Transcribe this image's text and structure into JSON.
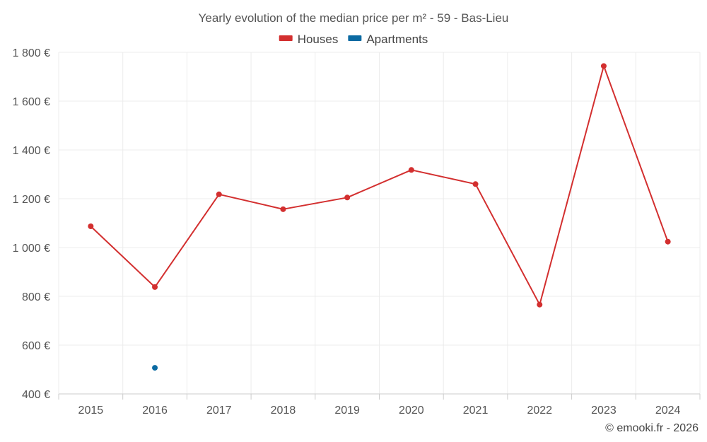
{
  "chart_data": {
    "type": "line",
    "title": "Yearly evolution of the median price per m² - 59 - Bas-Lieu",
    "categories": [
      "2015",
      "2016",
      "2017",
      "2018",
      "2019",
      "2020",
      "2021",
      "2022",
      "2023",
      "2024"
    ],
    "series": [
      {
        "name": "Houses",
        "color": "#d32f2f",
        "values": [
          1087,
          838,
          1218,
          1157,
          1205,
          1318,
          1260,
          766,
          1744,
          1024
        ]
      },
      {
        "name": "Apartments",
        "color": "#0b6aa2",
        "values": [
          null,
          507,
          null,
          null,
          null,
          null,
          null,
          null,
          null,
          null
        ]
      }
    ],
    "ylim": [
      400,
      1800
    ],
    "yticks": [
      400,
      600,
      800,
      1000,
      1200,
      1400,
      1600,
      1800
    ],
    "ytick_labels": [
      "400 €",
      "600 €",
      "800 €",
      "1 000 €",
      "1 200 €",
      "1 400 €",
      "1 600 €",
      "1 800 €"
    ],
    "xlabel": "",
    "ylabel": "",
    "grid": true,
    "legend_position": "top-center"
  },
  "credit": "© emooki.fr - 2026"
}
